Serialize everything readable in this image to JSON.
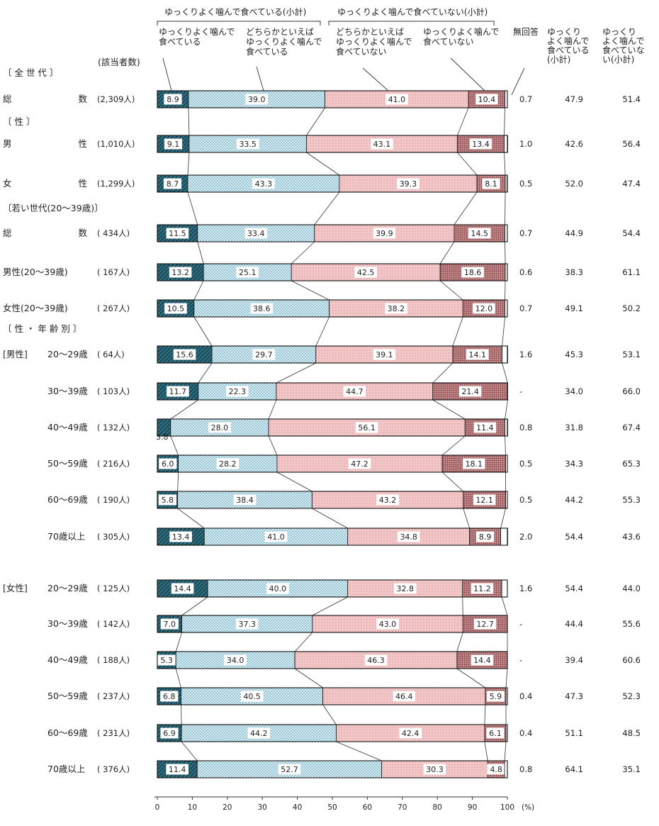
{
  "chart_data": {
    "type": "bar",
    "stacked": true,
    "orientation": "horizontal",
    "group_headers": {
      "chewing_subtotal": "ゆっくりよく噛んで食べている(小計)",
      "not_chewing_subtotal": "ゆっくりよく噛んで食べていない(小計)"
    },
    "series": [
      {
        "name_lines": [
          "ゆっくりよく噛んで",
          "食べている"
        ],
        "fill": "#2f6e80"
      },
      {
        "name_lines": [
          "どちらかといえば",
          "ゆっくりよく噛んで",
          "食べている"
        ],
        "fill": "#d5ebf2"
      },
      {
        "name_lines": [
          "どちらかといえば",
          "ゆっくりよく噛んで",
          "食べていない"
        ],
        "fill": "#f2c2c4"
      },
      {
        "name_lines": [
          "ゆっくりよく噛んで",
          "食べていない"
        ],
        "fill": "#b07a7d"
      },
      {
        "name_lines": [
          "無回答"
        ],
        "fill": "#ffffff"
      }
    ],
    "column_headers": {
      "count": "(該当者数)",
      "sub1_lines": [
        "ゆっくり",
        "よく噛んで",
        "食べている",
        "(小計)"
      ],
      "sub2_lines": [
        "ゆっくり",
        "よく噛んで",
        "食べていな",
        "い(小計)"
      ]
    },
    "sections": [
      {
        "label": "〔 全 世 代 〕",
        "row_index": 0
      },
      {
        "label": "〔 性 〕",
        "row_index": 1
      },
      {
        "label": "〔若い世代(20～39歳)〕",
        "row_index": 3
      },
      {
        "label": "〔 性 ・ 年 齢 別 〕",
        "row_index": 6
      }
    ],
    "group_labels": [
      {
        "label": "[男性]",
        "row_index": 6
      },
      {
        "label": "[女性]",
        "row_index": 12
      }
    ],
    "rows": [
      {
        "label": "総 数",
        "count": "(2,309人)",
        "values": [
          8.9,
          39.0,
          41.0,
          10.4,
          0.7
        ],
        "noans": "0.7",
        "sub1": "47.9",
        "sub2": "51.4"
      },
      {
        "label": "男 性",
        "count": "(1,010人)",
        "values": [
          9.1,
          33.5,
          43.1,
          13.4,
          1.0
        ],
        "noans": "1.0",
        "sub1": "42.6",
        "sub2": "56.4"
      },
      {
        "label": "女 性",
        "count": "(1,299人)",
        "values": [
          8.7,
          43.3,
          39.3,
          8.1,
          0.5
        ],
        "noans": "0.5",
        "sub1": "52.0",
        "sub2": "47.4"
      },
      {
        "label": "総 数",
        "count": "( 434人)",
        "values": [
          11.5,
          33.4,
          39.9,
          14.5,
          0.7
        ],
        "noans": "0.7",
        "sub1": "44.9",
        "sub2": "54.4"
      },
      {
        "label": "男性(20～39歳)",
        "count": "( 167人)",
        "values": [
          13.2,
          25.1,
          42.5,
          18.6,
          0.6
        ],
        "noans": "0.6",
        "sub1": "38.3",
        "sub2": "61.1"
      },
      {
        "label": "女性(20～39歳)",
        "count": "( 267人)",
        "values": [
          10.5,
          38.6,
          38.2,
          12.0,
          0.7
        ],
        "noans": "0.7",
        "sub1": "49.1",
        "sub2": "50.2"
      },
      {
        "label": "20～29歳",
        "count": "( 64人)",
        "values": [
          15.6,
          29.7,
          39.1,
          14.1,
          1.6
        ],
        "noans": "1.6",
        "sub1": "45.3",
        "sub2": "53.1"
      },
      {
        "label": "30～39歳",
        "count": "( 103人)",
        "values": [
          11.7,
          22.3,
          44.7,
          21.4,
          0
        ],
        "noans": "-",
        "sub1": "34.0",
        "sub2": "66.0"
      },
      {
        "label": "40～49歳",
        "count": "( 132人)",
        "values": [
          3.8,
          28.0,
          56.1,
          11.4,
          0.8
        ],
        "noans": "0.8",
        "sub1": "31.8",
        "sub2": "67.4"
      },
      {
        "label": "50～59歳",
        "count": "( 216人)",
        "values": [
          6.0,
          28.2,
          47.2,
          18.1,
          0.5
        ],
        "noans": "0.5",
        "sub1": "34.3",
        "sub2": "65.3"
      },
      {
        "label": "60～69歳",
        "count": "( 190人)",
        "values": [
          5.8,
          38.4,
          43.2,
          12.1,
          0.5
        ],
        "noans": "0.5",
        "sub1": "44.2",
        "sub2": "55.3"
      },
      {
        "label": "70歳以上",
        "count": "( 305人)",
        "values": [
          13.4,
          41.0,
          34.8,
          8.9,
          2.0
        ],
        "noans": "2.0",
        "sub1": "54.4",
        "sub2": "43.6"
      },
      {
        "label": "20～29歳",
        "count": "( 125人)",
        "values": [
          14.4,
          40.0,
          32.8,
          11.2,
          1.6
        ],
        "noans": "1.6",
        "sub1": "54.4",
        "sub2": "44.0"
      },
      {
        "label": "30～39歳",
        "count": "( 142人)",
        "values": [
          7.0,
          37.3,
          43.0,
          12.7,
          0
        ],
        "noans": "-",
        "sub1": "44.4",
        "sub2": "55.6"
      },
      {
        "label": "40～49歳",
        "count": "( 188人)",
        "values": [
          5.3,
          34.0,
          46.3,
          14.4,
          0
        ],
        "noans": "-",
        "sub1": "39.4",
        "sub2": "60.6"
      },
      {
        "label": "50～59歳",
        "count": "( 237人)",
        "values": [
          6.8,
          40.5,
          46.4,
          5.9,
          0.4
        ],
        "noans": "0.4",
        "sub1": "47.3",
        "sub2": "52.3"
      },
      {
        "label": "60～69歳",
        "count": "( 231人)",
        "values": [
          6.9,
          44.2,
          42.4,
          6.1,
          0.4
        ],
        "noans": "0.4",
        "sub1": "51.1",
        "sub2": "48.5"
      },
      {
        "label": "70歳以上",
        "count": "( 376人)",
        "values": [
          11.4,
          52.7,
          30.3,
          4.8,
          0.8
        ],
        "noans": "0.8",
        "sub1": "64.1",
        "sub2": "35.1"
      }
    ],
    "x_ticks": [
      "0",
      "10",
      "20",
      "30",
      "40",
      "50",
      "60",
      "70",
      "80",
      "90",
      "100"
    ],
    "x_unit": "(%)",
    "xlim": [
      0,
      100
    ]
  }
}
